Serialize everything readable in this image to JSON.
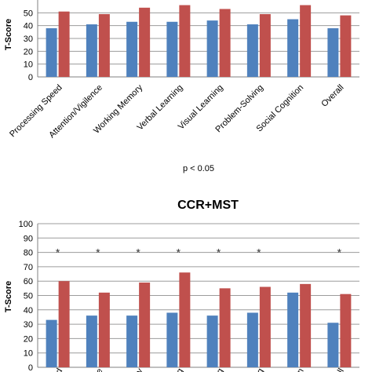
{
  "colors": {
    "series_a": "#4f81bd",
    "series_b": "#c0504d",
    "grid": "#9c9c9c",
    "axis": "#808080"
  },
  "chart_data": [
    {
      "type": "bar",
      "title": "",
      "xlabel": "",
      "ylabel": "T-Score",
      "ylim": [
        0,
        60
      ],
      "yticks": [
        0,
        10,
        20,
        30,
        40,
        50
      ],
      "grid": true,
      "categories": [
        "Processing Speed",
        "Attention/Vigilence",
        "Working Memory",
        "Verbal Learning",
        "Visual Learning",
        "Problem-Solving",
        "Social Cognition",
        "Overall"
      ],
      "series": [
        {
          "values": [
            38,
            41,
            43,
            43,
            44,
            41,
            45,
            38
          ]
        },
        {
          "values": [
            51,
            49,
            54,
            56,
            53,
            49,
            56,
            48
          ]
        }
      ],
      "annotation": "p < 0.05"
    },
    {
      "type": "bar",
      "title": "CCR+MST",
      "xlabel": "",
      "ylabel": "T-Score",
      "ylim": [
        0,
        100
      ],
      "yticks": [
        0,
        10,
        20,
        30,
        40,
        50,
        60,
        70,
        80,
        90,
        100
      ],
      "grid": true,
      "categories": [
        "Processing Speed",
        "Attention/Vigilence",
        "Working Memory",
        "Verbal Learning",
        "Visual Learning",
        "Problem-Solving",
        "Social Cognition",
        "Overall"
      ],
      "category_labels_visible": [
        "d",
        "e",
        "y",
        "g",
        "g",
        "g",
        "n",
        "ll"
      ],
      "series": [
        {
          "values": [
            33,
            36,
            36,
            38,
            36,
            38,
            52,
            31
          ]
        },
        {
          "values": [
            60,
            52,
            59,
            66,
            55,
            56,
            58,
            51
          ]
        }
      ],
      "significance_markers": [
        "*",
        "*",
        "*",
        "*",
        "*",
        "*",
        "",
        "*"
      ]
    }
  ]
}
